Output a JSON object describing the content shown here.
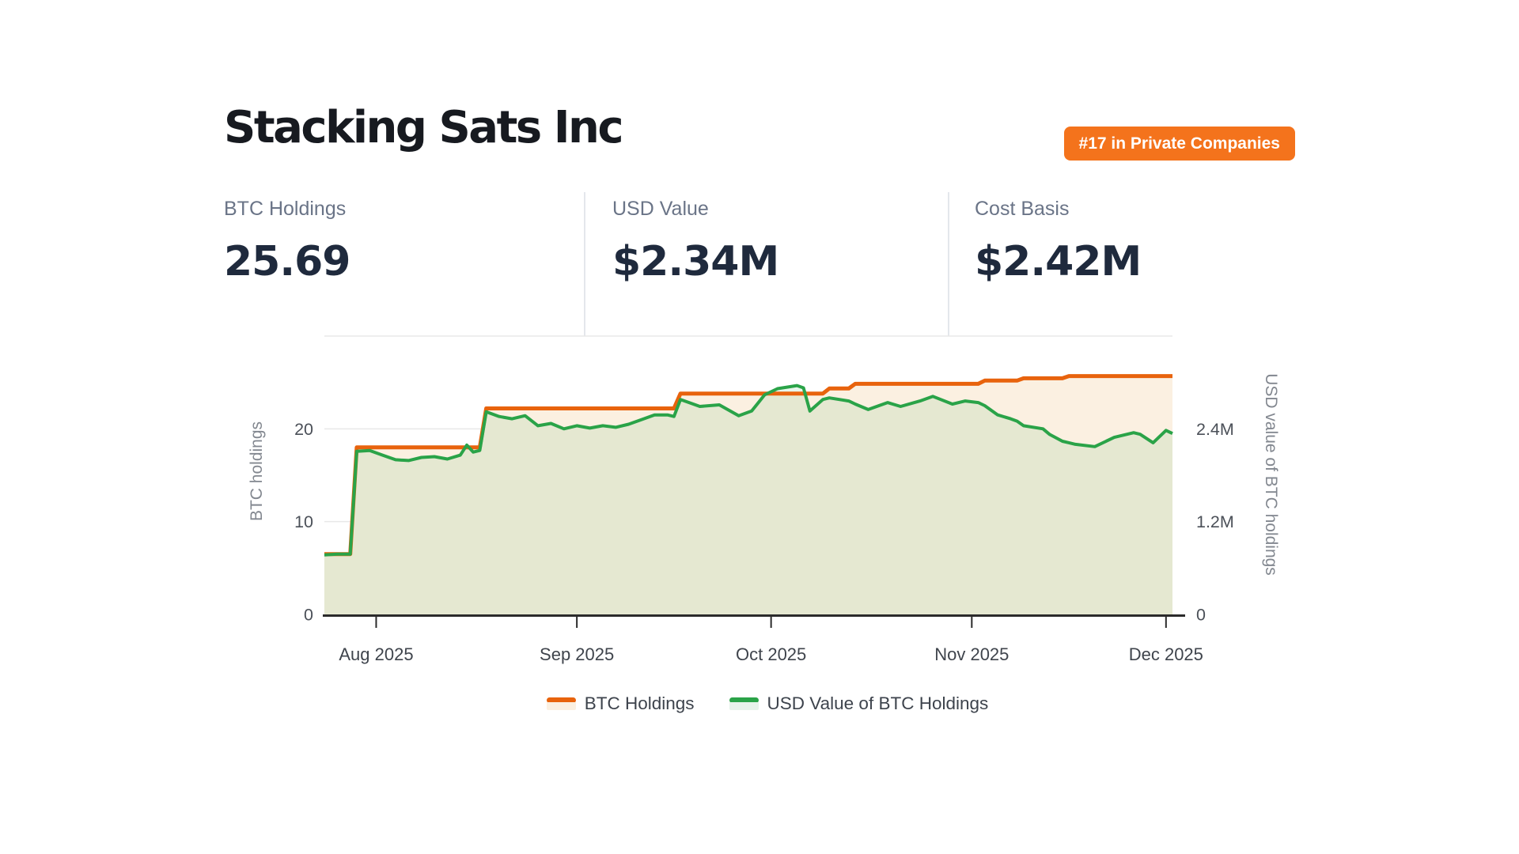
{
  "header": {
    "title": "Stacking Sats Inc",
    "badge": {
      "label": "#17 in Private Companies",
      "bg_color": "#f4731c",
      "text_color": "#ffffff"
    }
  },
  "stats": [
    {
      "label": "BTC Holdings",
      "value": "25.69"
    },
    {
      "label": "USD Value",
      "value": "$2.34M"
    },
    {
      "label": "Cost Basis",
      "value": "$2.42M"
    }
  ],
  "chart_data": {
    "type": "area",
    "title": "",
    "grid": true,
    "x_axis": {
      "start_date": "2025-07-24",
      "end_date": "2025-12-02",
      "ticks": [
        {
          "date": "2025-08-01",
          "label": "Aug 2025"
        },
        {
          "date": "2025-09-01",
          "label": "Sep 2025"
        },
        {
          "date": "2025-10-01",
          "label": "Oct 2025"
        },
        {
          "date": "2025-11-01",
          "label": "Nov 2025"
        },
        {
          "date": "2025-12-01",
          "label": "Dec 2025"
        }
      ]
    },
    "y_axis_left": {
      "title": "BTC holdings",
      "min": 0,
      "max": 30,
      "ticks": [
        {
          "value": 0,
          "label": "0"
        },
        {
          "value": 10,
          "label": "10"
        },
        {
          "value": 20,
          "label": "20"
        }
      ]
    },
    "y_axis_right": {
      "title": "USD value of BTC holdings",
      "min": 0,
      "max": 3.6,
      "unit": "millions USD",
      "ticks": [
        {
          "value": 0,
          "label": "0"
        },
        {
          "value": 1.2,
          "label": "1.2M"
        },
        {
          "value": 2.4,
          "label": "2.4M"
        }
      ]
    },
    "dates": [
      "2025-07-24",
      "2025-07-26",
      "2025-07-28",
      "2025-07-29",
      "2025-07-31",
      "2025-08-02",
      "2025-08-04",
      "2025-08-06",
      "2025-08-08",
      "2025-08-10",
      "2025-08-12",
      "2025-08-14",
      "2025-08-15",
      "2025-08-16",
      "2025-08-17",
      "2025-08-18",
      "2025-08-20",
      "2025-08-22",
      "2025-08-24",
      "2025-08-26",
      "2025-08-28",
      "2025-08-30",
      "2025-09-01",
      "2025-09-03",
      "2025-09-05",
      "2025-09-07",
      "2025-09-09",
      "2025-09-11",
      "2025-09-13",
      "2025-09-15",
      "2025-09-16",
      "2025-09-17",
      "2025-09-20",
      "2025-09-23",
      "2025-09-26",
      "2025-09-28",
      "2025-09-30",
      "2025-10-02",
      "2025-10-05",
      "2025-10-06",
      "2025-10-07",
      "2025-10-09",
      "2025-10-10",
      "2025-10-13",
      "2025-10-14",
      "2025-10-16",
      "2025-10-19",
      "2025-10-21",
      "2025-10-24",
      "2025-10-26",
      "2025-10-29",
      "2025-10-31",
      "2025-11-02",
      "2025-11-03",
      "2025-11-05",
      "2025-11-07",
      "2025-11-08",
      "2025-11-09",
      "2025-11-12",
      "2025-11-13",
      "2025-11-15",
      "2025-11-16",
      "2025-11-17",
      "2025-11-20",
      "2025-11-23",
      "2025-11-26",
      "2025-11-27",
      "2025-11-29",
      "2025-12-01",
      "2025-12-02"
    ],
    "series": [
      {
        "name": "BTC Holdings",
        "axis": "left",
        "color": "#e8630d",
        "fill": "#fbf0e1",
        "line_width": 5,
        "values": [
          6.5,
          6.5,
          6.5,
          18.0,
          18.0,
          18.0,
          18.0,
          18.0,
          18.0,
          18.0,
          18.0,
          18.0,
          18.0,
          18.0,
          18.0,
          22.2,
          22.2,
          22.2,
          22.2,
          22.2,
          22.2,
          22.2,
          22.2,
          22.2,
          22.2,
          22.2,
          22.2,
          22.2,
          22.2,
          22.2,
          22.2,
          23.8,
          23.8,
          23.8,
          23.8,
          23.8,
          23.8,
          23.8,
          23.8,
          23.8,
          23.8,
          23.8,
          24.35,
          24.35,
          24.85,
          24.85,
          24.85,
          24.85,
          24.85,
          24.85,
          24.85,
          24.85,
          24.85,
          25.2,
          25.2,
          25.2,
          25.2,
          25.45,
          25.45,
          25.45,
          25.45,
          25.69,
          25.69,
          25.69,
          25.69,
          25.69,
          25.69,
          25.69,
          25.69,
          25.69
        ]
      },
      {
        "name": "USD Value of BTC Holdings",
        "axis": "right",
        "color": "#2aa348",
        "fill": "rgba(42,163,72,0.10)",
        "line_width": 4,
        "values": [
          0.77,
          0.78,
          0.78,
          2.11,
          2.12,
          2.06,
          2.0,
          1.99,
          2.03,
          2.04,
          2.01,
          2.06,
          2.19,
          2.1,
          2.12,
          2.62,
          2.56,
          2.53,
          2.57,
          2.44,
          2.47,
          2.4,
          2.44,
          2.41,
          2.44,
          2.42,
          2.46,
          2.52,
          2.58,
          2.58,
          2.56,
          2.78,
          2.69,
          2.71,
          2.57,
          2.63,
          2.84,
          2.92,
          2.96,
          2.93,
          2.63,
          2.78,
          2.8,
          2.76,
          2.72,
          2.65,
          2.74,
          2.69,
          2.76,
          2.82,
          2.72,
          2.76,
          2.74,
          2.7,
          2.58,
          2.53,
          2.5,
          2.44,
          2.4,
          2.33,
          2.24,
          2.22,
          2.2,
          2.17,
          2.29,
          2.35,
          2.33,
          2.22,
          2.38,
          2.34
        ]
      }
    ],
    "legend": {
      "position": "bottom",
      "items": [
        "BTC Holdings",
        "USD Value of BTC Holdings"
      ]
    }
  }
}
